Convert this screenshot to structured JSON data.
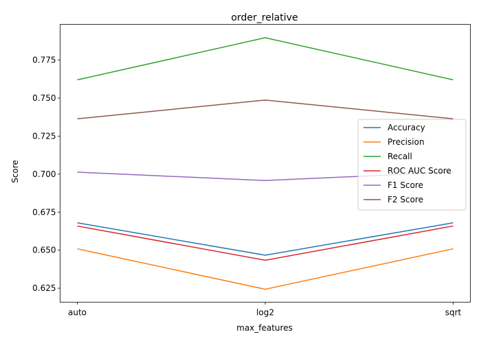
{
  "chart_data": {
    "type": "line",
    "title": "order_relative",
    "xlabel": "max_features",
    "ylabel": "Score",
    "categories": [
      "auto",
      "log2",
      "sqrt"
    ],
    "ylim": [
      0.6158,
      0.7985
    ],
    "yticks": [
      "0.625",
      "0.650",
      "0.675",
      "0.700",
      "0.725",
      "0.750",
      "0.775"
    ],
    "grid": false,
    "legend_position": "center-right",
    "series": [
      {
        "name": "Accuracy",
        "color": "#1f77b4",
        "values": [
          0.668,
          0.6467,
          0.668
        ]
      },
      {
        "name": "Precision",
        "color": "#ff7f0e",
        "values": [
          0.6509,
          0.6243,
          0.6509
        ]
      },
      {
        "name": "Recall",
        "color": "#2ca02c",
        "values": [
          0.762,
          0.7897,
          0.762
        ]
      },
      {
        "name": "ROC AUC Score",
        "color": "#d62728",
        "values": [
          0.6659,
          0.6434,
          0.6659
        ]
      },
      {
        "name": "F1 Score",
        "color": "#9467bd",
        "values": [
          0.7013,
          0.6958,
          0.7013
        ]
      },
      {
        "name": "F2 Score",
        "color": "#8c564b",
        "values": [
          0.7364,
          0.7487,
          0.7364
        ]
      }
    ]
  }
}
